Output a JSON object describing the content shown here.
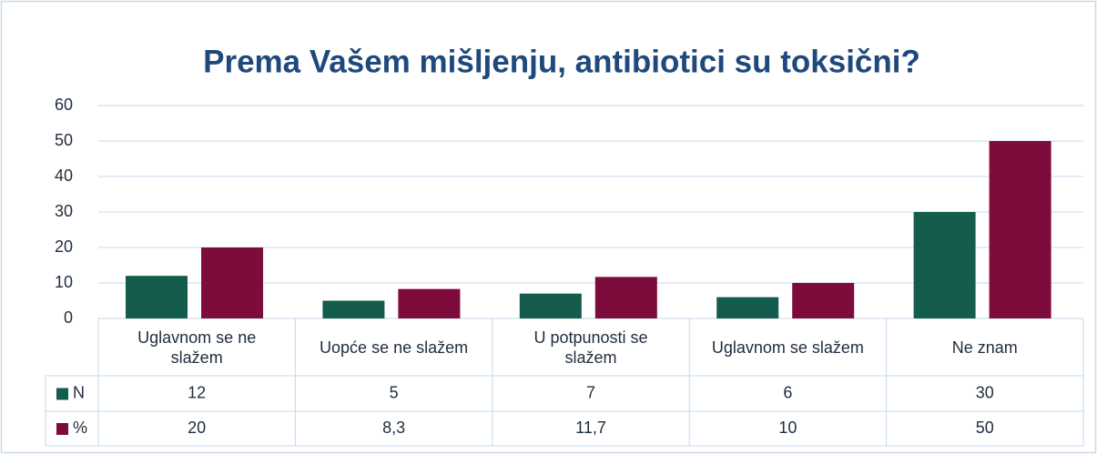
{
  "chart_data": {
    "type": "bar",
    "title": "Prema Vašem mišljenju,  antibiotici su toksični?",
    "categories": [
      "Uglavnom se ne slažem",
      "Uopće se ne slažem",
      "U potpunosti se slažem",
      "Uglavnom se slažem",
      "Ne znam"
    ],
    "series": [
      {
        "name": "N",
        "color": "#145c4c",
        "values": [
          12,
          5,
          7,
          6,
          30
        ]
      },
      {
        "name": "%",
        "color": "#7d0c3c",
        "values": [
          20,
          8.3,
          11.7,
          10,
          50
        ],
        "value_labels": [
          "20",
          "8,3",
          "11,7",
          "10",
          "50"
        ]
      }
    ],
    "ylim": [
      0,
      60
    ],
    "yticks": [
      0,
      10,
      20,
      30,
      40,
      50,
      60
    ],
    "grid": true
  }
}
